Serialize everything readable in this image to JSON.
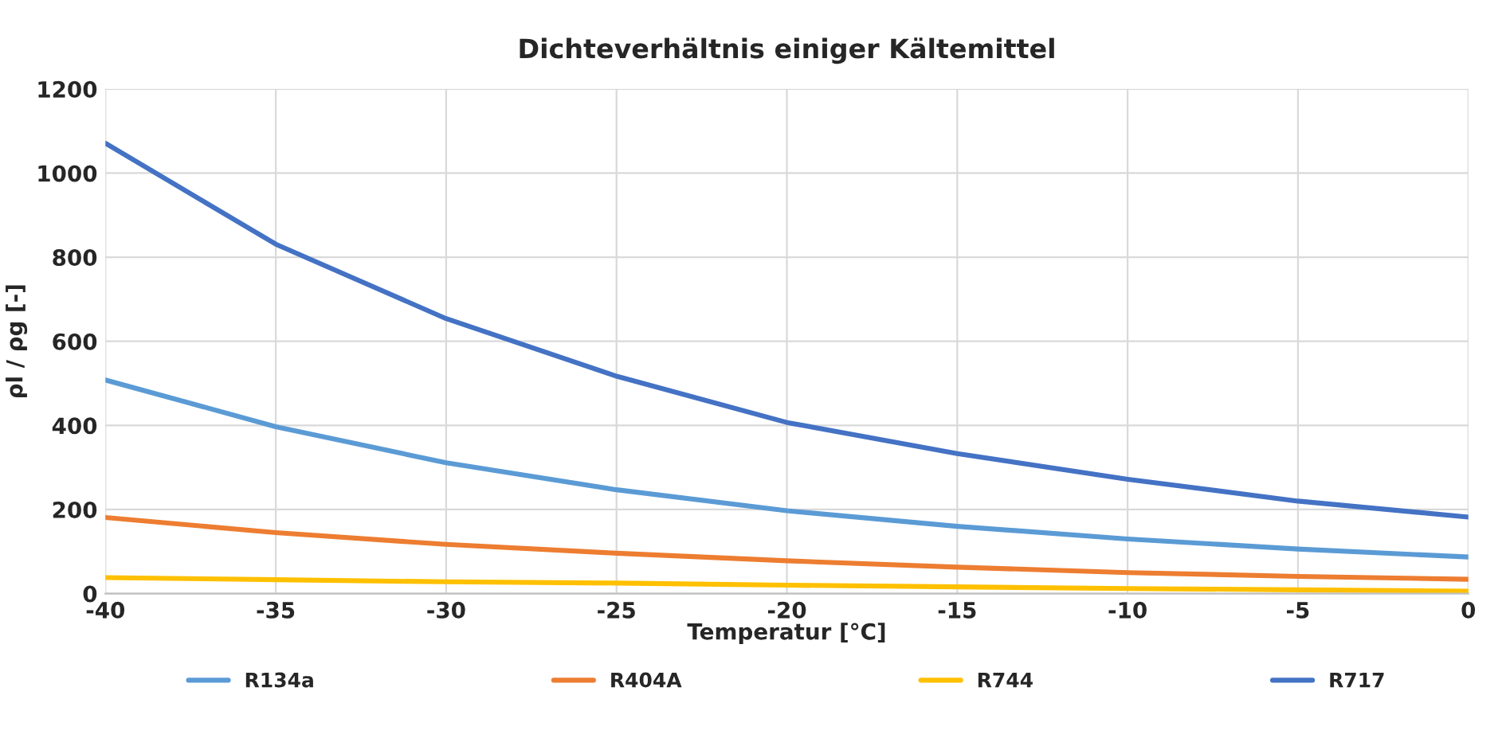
{
  "chart_data": {
    "type": "line",
    "title": "Dichteverhältnis einiger Kältemittel",
    "xlabel": "Temperatur [°C]",
    "ylabel": "ρl / ρg [-]",
    "x": [
      -40,
      -35,
      -30,
      -25,
      -20,
      -15,
      -10,
      -5,
      0
    ],
    "series": [
      {
        "name": "R134a",
        "color": "#5b9bd5",
        "values": [
          508,
          397,
          311,
          247,
          197,
          160,
          130,
          106,
          87
        ]
      },
      {
        "name": "R404A",
        "color": "#ed7d31",
        "values": [
          181,
          145,
          117,
          96,
          78,
          63,
          50,
          41,
          34
        ]
      },
      {
        "name": "R744",
        "color": "#ffc000",
        "values": [
          38,
          33,
          28,
          25,
          20,
          16,
          12,
          9,
          6
        ]
      },
      {
        "name": "R717",
        "color": "#4472c4",
        "values": [
          1071,
          831,
          654,
          517,
          407,
          333,
          272,
          220,
          182
        ]
      }
    ],
    "xlim": [
      -40,
      0
    ],
    "xticks": [
      -40,
      -35,
      -30,
      -25,
      -20,
      -15,
      -10,
      -5,
      0
    ],
    "ylim": [
      0,
      1200
    ],
    "yticks": [
      0,
      200,
      400,
      600,
      800,
      1000,
      1200
    ],
    "grid": true,
    "legend": "bottom",
    "marker": "none",
    "line_style": "solid"
  }
}
